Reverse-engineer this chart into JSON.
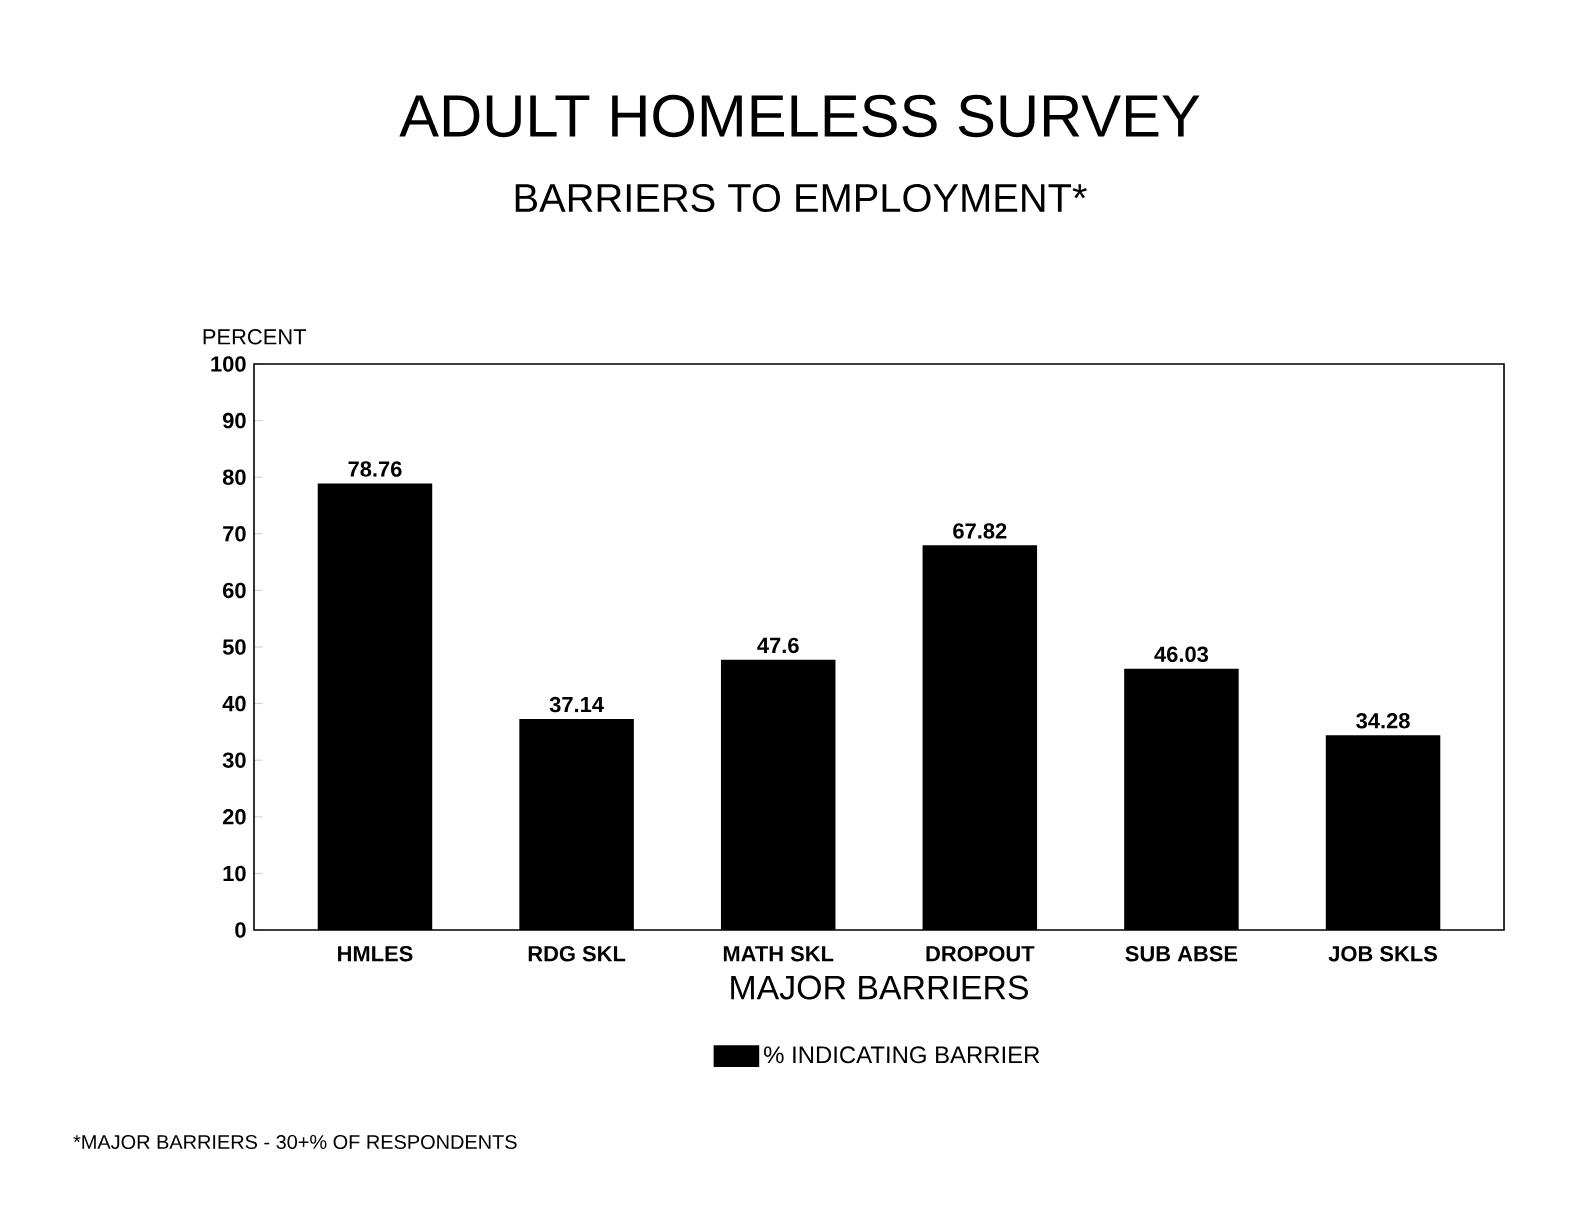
{
  "chart_data": {
    "type": "bar",
    "title": "ADULT HOMELESS SURVEY",
    "subtitle": "BARRIERS TO EMPLOYMENT*",
    "xlabel": "MAJOR BARRIERS",
    "ylabel": "PERCENT",
    "categories": [
      "HMLES",
      "RDG SKL",
      "MATH SKL",
      "DROPOUT",
      "SUB ABSE",
      "JOB SKLS"
    ],
    "series": [
      {
        "name": "% INDICATING BARRIER",
        "color": "#000000",
        "values": [
          78.76,
          37.14,
          47.6,
          67.82,
          46.03,
          34.28
        ],
        "value_labels": [
          "78.76",
          "37.14",
          "47.6",
          "67.82",
          "46.03",
          "34.28"
        ]
      }
    ],
    "ylim": [
      0,
      100
    ],
    "yticks": [
      0,
      10,
      20,
      30,
      40,
      50,
      60,
      70,
      80,
      90,
      100
    ],
    "legend": "bottom",
    "grid": false,
    "annotations": [
      "*MAJOR BARRIERS - 30+% OF RESPONDENTS"
    ]
  }
}
